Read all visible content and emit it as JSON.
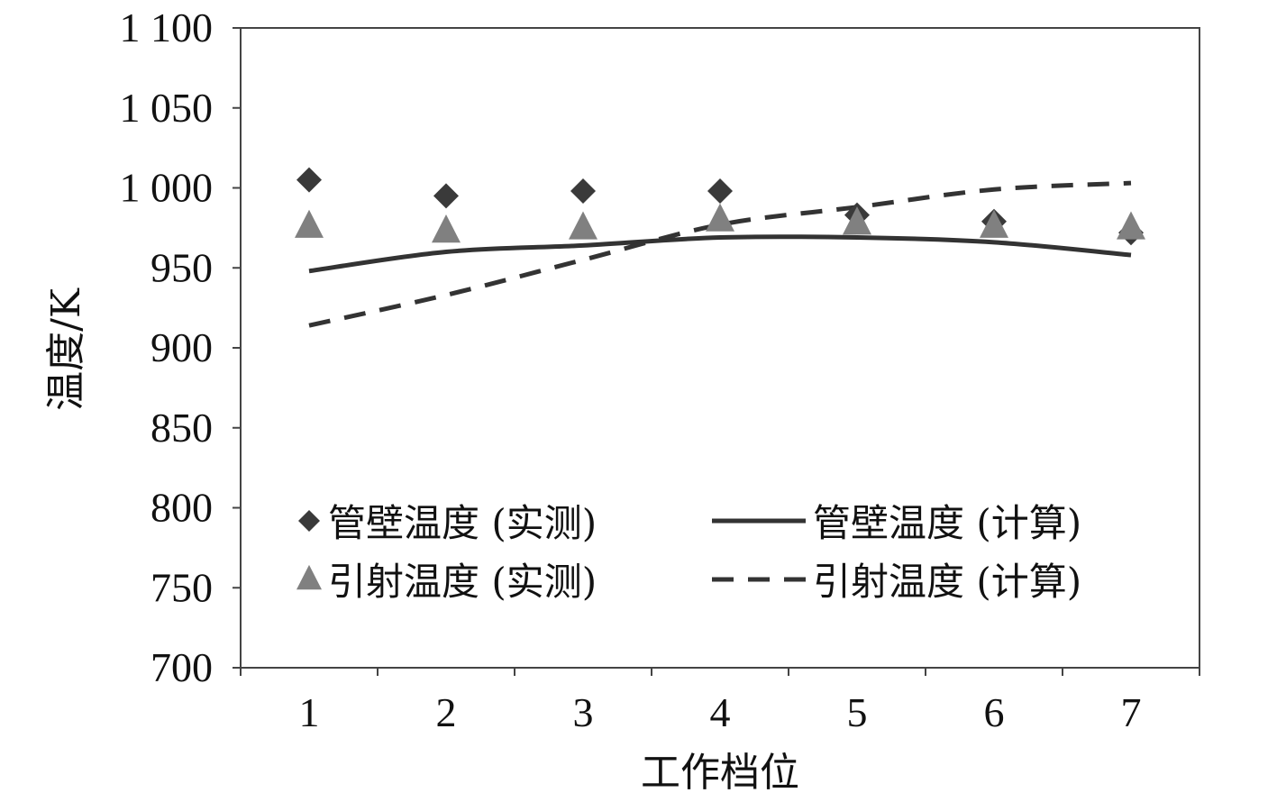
{
  "chart_data": {
    "type": "line",
    "xlabel": "工作档位",
    "ylabel": "温度/K",
    "categories": [
      "1",
      "2",
      "3",
      "4",
      "5",
      "6",
      "7"
    ],
    "y_ticks": [
      "700",
      "750",
      "800",
      "850",
      "900",
      "950",
      "1 000",
      "1 050",
      "1 100"
    ],
    "ylim": [
      700,
      1100
    ],
    "grid": false,
    "legend_position": "bottom-left",
    "series": [
      {
        "name": "管壁温度 (实测)",
        "kind": "marker-diamond",
        "color": "#3a3a3a",
        "values": [
          1005,
          995,
          998,
          998,
          983,
          979,
          972
        ]
      },
      {
        "name": "引射温度 (实测)",
        "kind": "marker-triangle",
        "color": "#808080",
        "values": [
          976,
          973,
          975,
          980,
          978,
          976,
          975
        ]
      },
      {
        "name": "管壁温度 (计算)",
        "kind": "line-solid",
        "color": "#333333",
        "values": [
          948,
          960,
          964,
          969,
          969,
          966,
          958
        ]
      },
      {
        "name": "引射温度 (计算)",
        "kind": "line-dashed",
        "color": "#333333",
        "values": [
          914,
          933,
          955,
          977,
          988,
          999,
          1003
        ]
      }
    ]
  }
}
